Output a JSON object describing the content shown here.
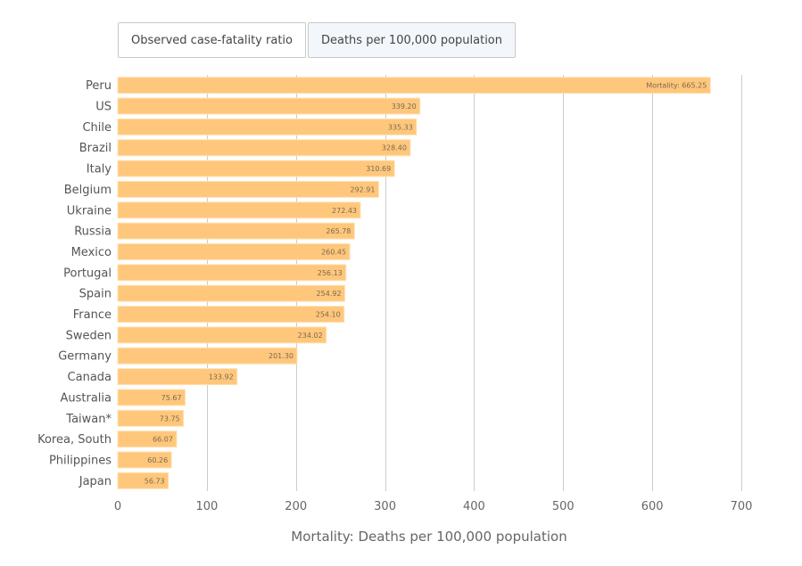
{
  "toggle": {
    "buttons": [
      {
        "label": "Observed case-fatality ratio",
        "active": false
      },
      {
        "label": "Deaths per 100,000 population",
        "active": true
      }
    ]
  },
  "colors": {
    "bar": "#ffc77b",
    "bar_border": "#ffe3b8",
    "grid": "#cccccc"
  },
  "chart_data": {
    "type": "bar",
    "orientation": "horizontal",
    "title": "",
    "xlabel": "Mortality: Deaths per 100,000 population",
    "ylabel": "",
    "xlim": [
      0,
      700
    ],
    "xticks": [
      0,
      100,
      200,
      300,
      400,
      500,
      600,
      700
    ],
    "grid": true,
    "categories": [
      "Peru",
      "US",
      "Chile",
      "Brazil",
      "Italy",
      "Belgium",
      "Ukraine",
      "Russia",
      "Mexico",
      "Portugal",
      "Spain",
      "France",
      "Sweden",
      "Germany",
      "Canada",
      "Australia",
      "Taiwan*",
      "Korea, South",
      "Philippines",
      "Japan"
    ],
    "values": [
      665.25,
      339.2,
      335.33,
      328.4,
      310.69,
      292.91,
      272.43,
      265.78,
      260.45,
      256.13,
      254.92,
      254.1,
      234.02,
      201.3,
      133.92,
      75.67,
      73.75,
      66.07,
      60.26,
      56.73
    ],
    "data_labels": [
      "Mortality: 665.25",
      "339.20",
      "335.33",
      "328.40",
      "310.69",
      "292.91",
      "272.43",
      "265.78",
      "260.45",
      "256.13",
      "254.92",
      "254.10",
      "234.02",
      "201.30",
      "133.92",
      "75.67",
      "73.75",
      "66.07",
      "60.26",
      "56.73"
    ]
  }
}
